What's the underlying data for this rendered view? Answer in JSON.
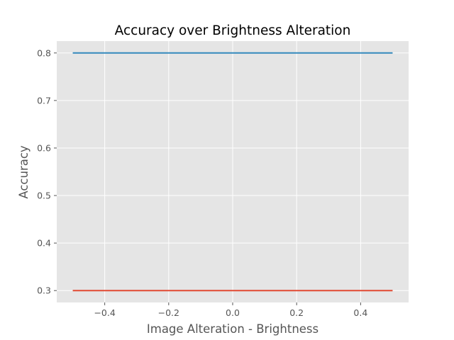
{
  "chart_data": {
    "type": "line",
    "title": "Accuracy over Brightness Alteration",
    "xlabel": "Image Alteration - Brightness",
    "ylabel": "Accuracy",
    "xlim": [
      -0.55,
      0.55
    ],
    "ylim": [
      0.275,
      0.825
    ],
    "x_ticks": [
      -0.4,
      -0.2,
      0.0,
      0.2,
      0.4
    ],
    "x_tick_labels": [
      "−0.4",
      "−0.2",
      "0.0",
      "0.2",
      "0.4"
    ],
    "y_ticks": [
      0.3,
      0.4,
      0.5,
      0.6,
      0.7,
      0.8
    ],
    "y_tick_labels": [
      "0.3",
      "0.4",
      "0.5",
      "0.6",
      "0.7",
      "0.8"
    ],
    "grid": true,
    "background_color": "#e5e5e5",
    "grid_color": "#ffffff",
    "series": [
      {
        "color": "#348abd",
        "x": [
          -0.5,
          0.5
        ],
        "y": [
          0.8,
          0.8
        ]
      },
      {
        "color": "#e24a33",
        "x": [
          -0.5,
          0.5
        ],
        "y": [
          0.3,
          0.3
        ]
      }
    ]
  }
}
